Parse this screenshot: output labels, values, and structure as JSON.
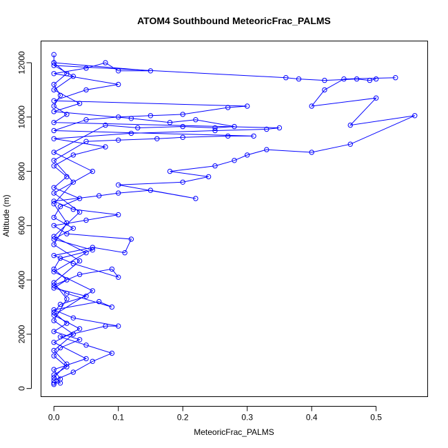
{
  "chart_data": {
    "type": "scatter",
    "title": "ATOM4 Southbound MeteoricFrac_PALMS",
    "xlabel": "MeteoricFrac_PALMS",
    "ylabel": "Altitude (m)",
    "xlim": [
      -0.02,
      0.58
    ],
    "ylim": [
      -300,
      12800
    ],
    "x_ticks": [
      0.0,
      0.1,
      0.2,
      0.3,
      0.4,
      0.5
    ],
    "x_tick_labels": [
      "0.0",
      "0.1",
      "0.2",
      "0.3",
      "0.4",
      "0.5"
    ],
    "y_ticks": [
      0,
      2000,
      4000,
      6000,
      8000,
      10000,
      12000
    ],
    "y_tick_labels": [
      "0",
      "2000",
      "4000",
      "6000",
      "8000",
      "10000",
      "12000"
    ],
    "grid": false,
    "legend": "none",
    "marker": "open-circle",
    "connect_points": true,
    "color": "#0000ff",
    "series": [
      {
        "points": [
          [
            0.0,
            200
          ],
          [
            0.01,
            200
          ],
          [
            0.0,
            500
          ],
          [
            0.02,
            800
          ],
          [
            0.0,
            1200
          ],
          [
            0.01,
            1500
          ],
          [
            0.04,
            1800
          ],
          [
            0.0,
            2100
          ],
          [
            0.02,
            2400
          ],
          [
            0.0,
            2800
          ],
          [
            0.01,
            3100
          ],
          [
            0.05,
            3400
          ],
          [
            0.0,
            3700
          ],
          [
            0.02,
            4000
          ],
          [
            0.0,
            4400
          ],
          [
            0.01,
            4800
          ],
          [
            0.06,
            5100
          ],
          [
            0.0,
            5500
          ],
          [
            0.03,
            5900
          ],
          [
            0.0,
            6300
          ],
          [
            0.01,
            6700
          ],
          [
            0.04,
            7000
          ],
          [
            0.0,
            7400
          ],
          [
            0.02,
            7800
          ],
          [
            0.0,
            8200
          ],
          [
            0.03,
            8600
          ],
          [
            0.08,
            8900
          ],
          [
            0.0,
            9200
          ],
          [
            0.12,
            9400
          ],
          [
            0.25,
            9500
          ],
          [
            0.33,
            9550
          ],
          [
            0.35,
            9600
          ],
          [
            0.0,
            9800
          ],
          [
            0.02,
            10100
          ],
          [
            0.0,
            10400
          ],
          [
            0.01,
            10800
          ],
          [
            0.0,
            11200
          ],
          [
            0.02,
            11600
          ],
          [
            0.0,
            12000
          ],
          [
            0.0,
            12300
          ]
        ]
      },
      {
        "points": [
          [
            0.0,
            300
          ],
          [
            0.03,
            600
          ],
          [
            0.06,
            1000
          ],
          [
            0.09,
            1300
          ],
          [
            0.05,
            1600
          ],
          [
            0.01,
            1900
          ],
          [
            0.08,
            2300
          ],
          [
            0.1,
            2300
          ],
          [
            0.03,
            2600
          ],
          [
            0.0,
            2900
          ],
          [
            0.07,
            3200
          ],
          [
            0.09,
            3000
          ],
          [
            0.02,
            3500
          ],
          [
            0.0,
            3800
          ],
          [
            0.04,
            4200
          ],
          [
            0.09,
            4400
          ],
          [
            0.1,
            4100
          ],
          [
            0.03,
            4600
          ],
          [
            0.0,
            4900
          ],
          [
            0.06,
            5200
          ],
          [
            0.11,
            5000
          ],
          [
            0.12,
            5500
          ],
          [
            0.02,
            5700
          ],
          [
            0.0,
            6000
          ],
          [
            0.05,
            6200
          ],
          [
            0.1,
            6400
          ],
          [
            0.03,
            6600
          ],
          [
            0.0,
            6900
          ],
          [
            0.07,
            7100
          ],
          [
            0.1,
            7200
          ],
          [
            0.15,
            7300
          ],
          [
            0.22,
            7000
          ],
          [
            0.1,
            7500
          ],
          [
            0.2,
            7600
          ],
          [
            0.24,
            7800
          ],
          [
            0.18,
            8000
          ],
          [
            0.25,
            8200
          ],
          [
            0.28,
            8400
          ],
          [
            0.3,
            8600
          ],
          [
            0.33,
            8800
          ],
          [
            0.4,
            8700
          ],
          [
            0.46,
            9000
          ],
          [
            0.56,
            10050
          ],
          [
            0.46,
            9700
          ],
          [
            0.5,
            10700
          ],
          [
            0.4,
            10400
          ],
          [
            0.42,
            11000
          ],
          [
            0.45,
            11400
          ],
          [
            0.53,
            11450
          ]
        ]
      },
      {
        "points": [
          [
            0.0,
            400
          ],
          [
            0.02,
            900
          ],
          [
            0.0,
            1400
          ],
          [
            0.03,
            2000
          ],
          [
            0.0,
            2500
          ],
          [
            0.02,
            3300
          ],
          [
            0.0,
            3900
          ],
          [
            0.04,
            4700
          ],
          [
            0.0,
            5300
          ],
          [
            0.02,
            6100
          ],
          [
            0.0,
            6800
          ],
          [
            0.03,
            7600
          ],
          [
            0.0,
            8400
          ],
          [
            0.05,
            9100
          ],
          [
            0.1,
            9150
          ],
          [
            0.16,
            9200
          ],
          [
            0.2,
            9250
          ],
          [
            0.27,
            9300
          ],
          [
            0.31,
            9300
          ],
          [
            0.0,
            9500
          ],
          [
            0.05,
            9900
          ],
          [
            0.1,
            10000
          ],
          [
            0.15,
            10050
          ],
          [
            0.2,
            10100
          ],
          [
            0.27,
            10350
          ],
          [
            0.3,
            10400
          ],
          [
            0.0,
            10600
          ],
          [
            0.05,
            11000
          ],
          [
            0.1,
            11200
          ],
          [
            0.0,
            11600
          ],
          [
            0.05,
            11800
          ],
          [
            0.08,
            12000
          ],
          [
            0.1,
            11700
          ],
          [
            0.15,
            11700
          ],
          [
            0.0,
            12000
          ]
        ]
      },
      {
        "points": [
          [
            0.0,
            150
          ],
          [
            0.01,
            350
          ],
          [
            0.0,
            700
          ],
          [
            0.05,
            1100
          ],
          [
            0.0,
            1700
          ],
          [
            0.04,
            2200
          ],
          [
            0.0,
            2700
          ],
          [
            0.06,
            3600
          ],
          [
            0.0,
            4300
          ],
          [
            0.05,
            5000
          ],
          [
            0.0,
            5600
          ],
          [
            0.04,
            6500
          ],
          [
            0.0,
            7200
          ],
          [
            0.06,
            8000
          ],
          [
            0.0,
            8700
          ],
          [
            0.08,
            9700
          ],
          [
            0.13,
            9600
          ],
          [
            0.2,
            9650
          ],
          [
            0.25,
            9600
          ],
          [
            0.28,
            9650
          ],
          [
            0.22,
            9900
          ],
          [
            0.18,
            9800
          ],
          [
            0.12,
            9950
          ],
          [
            0.0,
            10200
          ],
          [
            0.04,
            10500
          ],
          [
            0.0,
            11000
          ],
          [
            0.03,
            11500
          ],
          [
            0.0,
            11900
          ],
          [
            0.36,
            11450
          ],
          [
            0.38,
            11400
          ],
          [
            0.42,
            11350
          ],
          [
            0.47,
            11400
          ],
          [
            0.49,
            11350
          ],
          [
            0.5,
            11400
          ]
        ]
      }
    ]
  }
}
